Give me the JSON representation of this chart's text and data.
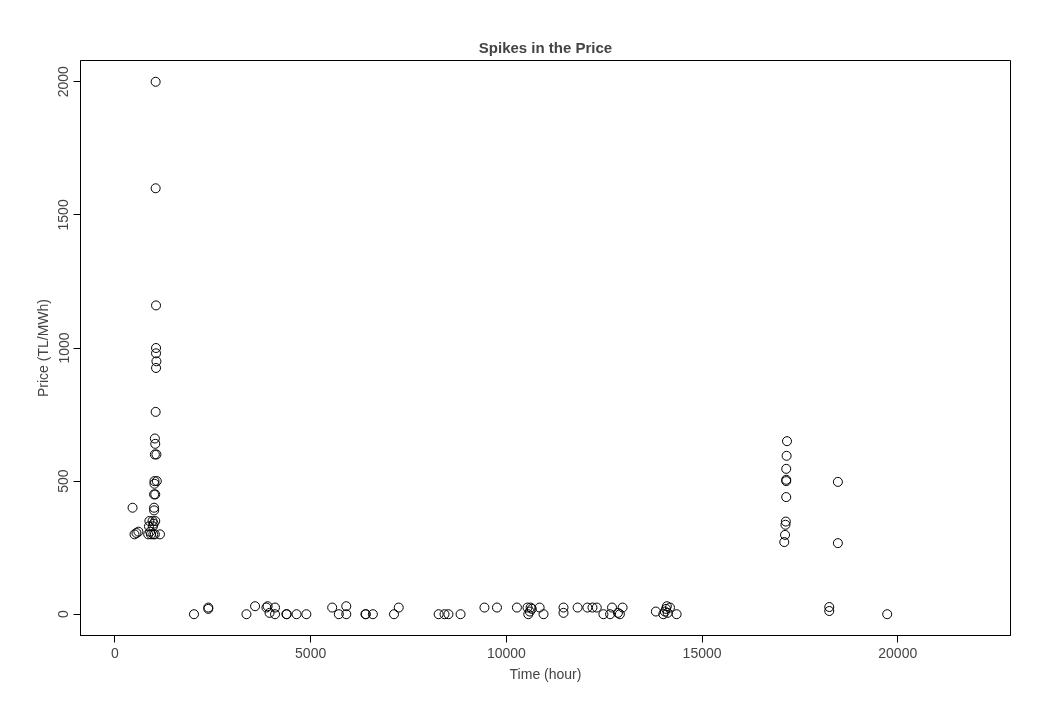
{
  "chart_data": {
    "type": "scatter",
    "title": "Spikes in the Price",
    "xlabel": "Time (hour)",
    "ylabel": "Price (TL/MWh)",
    "xlim": [
      -880,
      22880
    ],
    "ylim": [
      -80,
      2080
    ],
    "xticks": [
      0,
      5000,
      10000,
      15000,
      20000
    ],
    "yticks": [
      0,
      500,
      1000,
      1500,
      2000
    ],
    "grid": false,
    "marker": "circle",
    "series": [
      {
        "color": "#000000",
        "x": [
          450,
          500,
          550,
          600,
          850,
          870,
          880,
          900,
          920,
          960,
          970,
          980,
          990,
          1000,
          1000,
          1000,
          1010,
          1010,
          1020,
          1020,
          1020,
          1030,
          1030,
          1030,
          1040,
          1040,
          1040,
          1050,
          1050,
          1050,
          1050,
          1060,
          1060,
          1070,
          1150,
          2020,
          2385,
          2385,
          3360,
          3580,
          3870,
          3900,
          3950,
          4090,
          4090,
          4380,
          4390,
          4640,
          4890,
          5550,
          5720,
          5910,
          5910,
          6400,
          6410,
          6590,
          7130,
          7250,
          8270,
          8420,
          8520,
          8830,
          9440,
          9760,
          10270,
          10540,
          10560,
          10600,
          10620,
          10650,
          10850,
          10950,
          11460,
          11460,
          11820,
          12070,
          12200,
          12310,
          12480,
          12650,
          12700,
          12850,
          12900,
          12970,
          13820,
          14010,
          14050,
          14080,
          14100,
          14120,
          14180,
          14350,
          17100,
          17120,
          17130,
          17140,
          17150,
          17150,
          17150,
          17150,
          17160,
          17170,
          18250,
          18250,
          18470,
          18470,
          19730
        ],
        "values": [
          400,
          300,
          305,
          310,
          300,
          330,
          350,
          310,
          300,
          350,
          330,
          300,
          340,
          390,
          400,
          450,
          500,
          490,
          300,
          600,
          660,
          640,
          450,
          350,
          2000,
          1600,
          760,
          1160,
          1000,
          980,
          925,
          950,
          600,
          500,
          300,
          0,
          20,
          25,
          0,
          30,
          25,
          30,
          5,
          0,
          25,
          0,
          0,
          0,
          0,
          25,
          0,
          0,
          30,
          0,
          0,
          0,
          0,
          25,
          0,
          0,
          0,
          0,
          25,
          25,
          25,
          25,
          0,
          10,
          25,
          20,
          25,
          0,
          25,
          5,
          25,
          25,
          25,
          25,
          0,
          0,
          25,
          5,
          0,
          25,
          10,
          0,
          10,
          20,
          30,
          5,
          25,
          0,
          271,
          298,
          336,
          348,
          440,
          500,
          505,
          546,
          595,
          650,
          27,
          12,
          497,
          267,
          0
        ]
      }
    ]
  }
}
